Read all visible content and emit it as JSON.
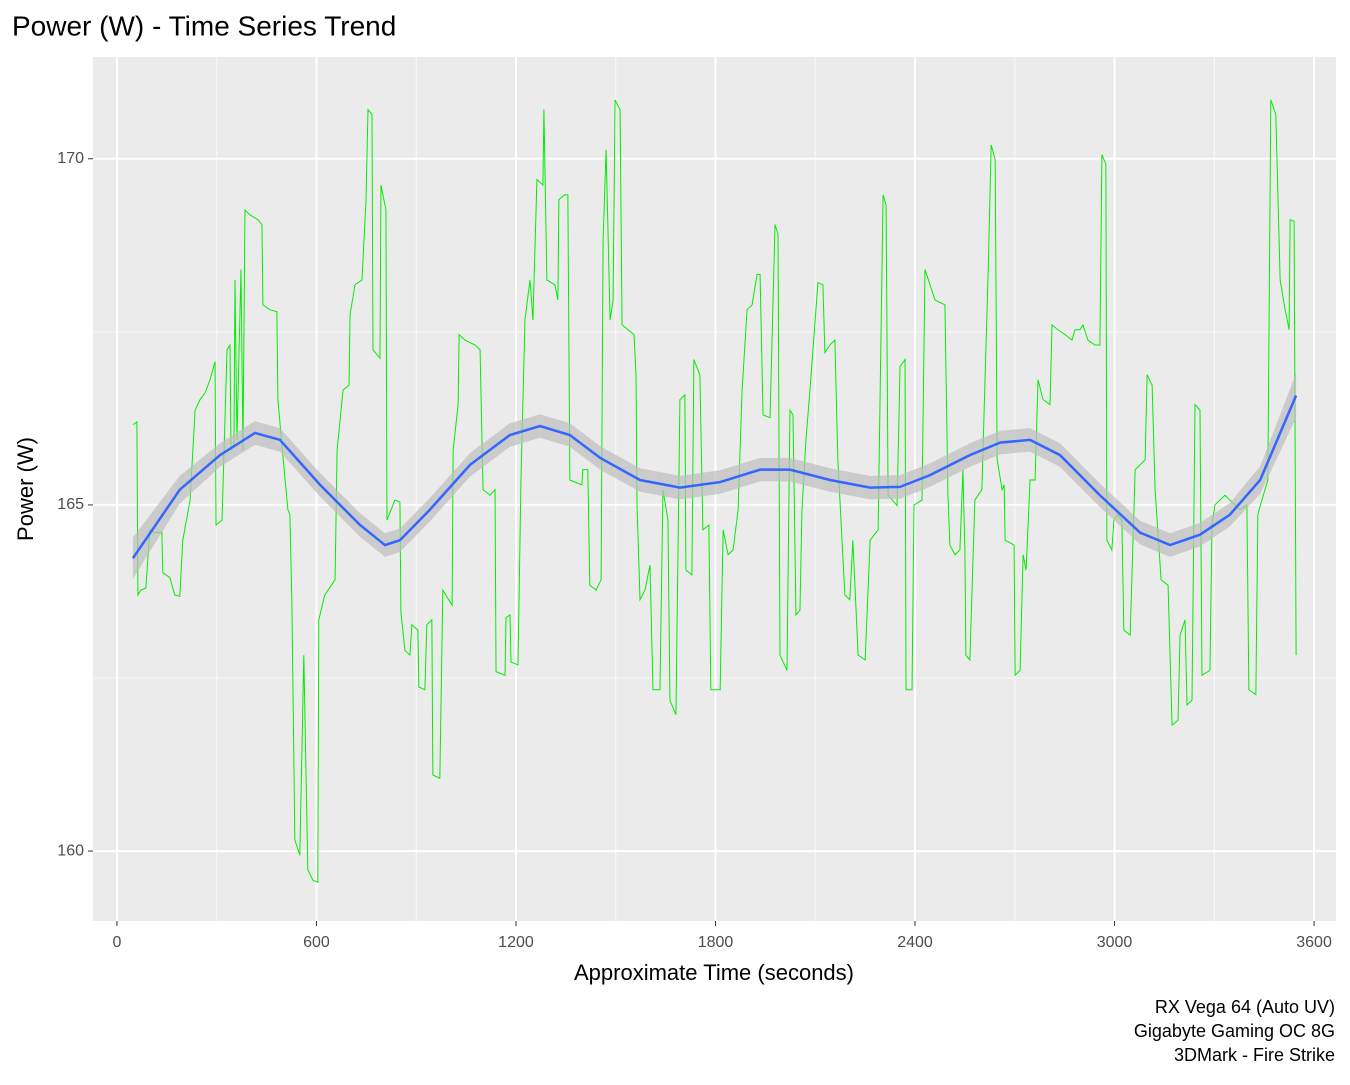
{
  "chart_data": {
    "type": "line",
    "title": "Power (W) - Time Series Trend",
    "x_label": "Approximate Time (seconds)",
    "y_label": "Power (W)",
    "caption": [
      "RX Vega 64 (Auto UV)",
      "Gigabyte Gaming OC 8G",
      "3DMark - Fire Strike"
    ],
    "xlim": [
      -72,
      3666
    ],
    "ylim": [
      158.99,
      171.47
    ],
    "xticks": [
      0,
      600,
      1200,
      1800,
      2400,
      3000,
      3600
    ],
    "yticks": [
      160,
      165,
      170
    ],
    "x_minor_grid": [
      300,
      900,
      1500,
      2100,
      2700,
      3300
    ],
    "y_minor_grid": [
      162.5,
      167.5
    ],
    "grid": true,
    "background": "#ebebeb",
    "series": [
      {
        "color": "#00ee00",
        "x": [
          48,
          60,
          63,
          72,
          87,
          99,
          114,
          129,
          135,
          138,
          159,
          174,
          189,
          198,
          220,
          235,
          250,
          265,
          280,
          295,
          298,
          316,
          331,
          340,
          343,
          352,
          355,
          361,
          373,
          379,
          385,
          400,
          424,
          436,
          439,
          460,
          481,
          484,
          496,
          514,
          520,
          526,
          535,
          550,
          562,
          574,
          589,
          604,
          607,
          625,
          656,
          662,
          680,
          698,
          701,
          716,
          737,
          749,
          755,
          767,
          770,
          791,
          794,
          809,
          812,
          836,
          851,
          854,
          866,
          881,
          887,
          905,
          908,
          926,
          932,
          947,
          950,
          971,
          980,
          1008,
          1011,
          1026,
          1029,
          1047,
          1077,
          1092,
          1101,
          1122,
          1137,
          1140,
          1167,
          1170,
          1182,
          1185,
          1206,
          1215,
          1227,
          1242,
          1251,
          1263,
          1281,
          1284,
          1293,
          1317,
          1326,
          1329,
          1347,
          1356,
          1362,
          1398,
          1401,
          1416,
          1422,
          1441,
          1456,
          1462,
          1471,
          1483,
          1492,
          1498,
          1513,
          1519,
          1555,
          1561,
          1564,
          1573,
          1588,
          1603,
          1612,
          1633,
          1642,
          1657,
          1663,
          1681,
          1693,
          1708,
          1711,
          1729,
          1735,
          1753,
          1762,
          1780,
          1786,
          1814,
          1823,
          1838,
          1853,
          1868,
          1880,
          1895,
          1910,
          1925,
          1934,
          1943,
          1964,
          1979,
          1988,
          1994,
          2015,
          2024,
          2033,
          2042,
          2054,
          2060,
          2072,
          2084,
          2108,
          2123,
          2129,
          2144,
          2159,
          2168,
          2189,
          2204,
          2213,
          2229,
          2250,
          2265,
          2289,
          2304,
          2313,
          2319,
          2346,
          2355,
          2370,
          2373,
          2391,
          2397,
          2421,
          2430,
          2445,
          2460,
          2490,
          2499,
          2505,
          2520,
          2535,
          2544,
          2550,
          2553,
          2565,
          2580,
          2601,
          2620,
          2629,
          2641,
          2647,
          2662,
          2668,
          2671,
          2698,
          2701,
          2716,
          2725,
          2734,
          2746,
          2761,
          2770,
          2785,
          2806,
          2812,
          2830,
          2851,
          2872,
          2881,
          2896,
          2905,
          2920,
          2941,
          2956,
          2962,
          2974,
          2977,
          2992,
          2998,
          3010,
          3022,
          3028,
          3047,
          3062,
          3077,
          3092,
          3098,
          3113,
          3122,
          3140,
          3161,
          3173,
          3191,
          3197,
          3212,
          3218,
          3233,
          3242,
          3257,
          3263,
          3287,
          3293,
          3302,
          3317,
          3332,
          3347,
          3377,
          3398,
          3404,
          3425,
          3431,
          3443,
          3461,
          3470,
          3485,
          3498,
          3513,
          3525,
          3528,
          3540,
          3546
        ],
        "values": [
          166.16,
          166.2,
          163.7,
          163.77,
          163.8,
          164.64,
          164.6,
          164.6,
          164.61,
          164.02,
          163.95,
          163.7,
          163.68,
          164.49,
          165.07,
          166.37,
          166.52,
          166.62,
          166.81,
          167.07,
          164.71,
          164.78,
          167.24,
          167.31,
          165.79,
          165.87,
          168.25,
          165.94,
          168.4,
          165.79,
          169.26,
          169.19,
          169.12,
          169.05,
          167.89,
          167.82,
          167.79,
          166.52,
          165.87,
          164.93,
          164.86,
          163.63,
          160.16,
          159.94,
          162.83,
          159.73,
          159.58,
          159.55,
          163.34,
          163.7,
          163.92,
          165.79,
          166.66,
          166.73,
          167.75,
          168.18,
          168.25,
          169.41,
          170.71,
          170.64,
          167.24,
          167.12,
          169.62,
          169.26,
          164.78,
          165.07,
          165.04,
          163.45,
          162.9,
          162.83,
          163.27,
          163.19,
          162.37,
          162.33,
          163.27,
          163.34,
          161.1,
          161.05,
          163.77,
          163.55,
          165.79,
          166.45,
          167.46,
          167.38,
          167.31,
          167.24,
          165.22,
          165.14,
          165.22,
          162.59,
          162.54,
          163.37,
          163.41,
          162.73,
          162.69,
          165.36,
          167.67,
          168.25,
          167.67,
          169.7,
          169.62,
          170.71,
          168.25,
          168.18,
          167.96,
          169.41,
          169.48,
          169.48,
          165.36,
          165.29,
          165.51,
          165.51,
          163.84,
          163.77,
          163.92,
          168.83,
          170.13,
          167.67,
          167.96,
          170.85,
          170.71,
          167.6,
          167.46,
          166.88,
          165.0,
          163.63,
          163.77,
          164.13,
          162.33,
          162.33,
          165.22,
          164.78,
          162.18,
          161.97,
          166.52,
          166.59,
          164.06,
          163.99,
          167.1,
          166.88,
          164.64,
          164.71,
          162.33,
          162.33,
          164.64,
          164.28,
          164.35,
          164.93,
          166.66,
          167.82,
          167.89,
          168.33,
          168.33,
          166.3,
          166.26,
          169.05,
          168.91,
          162.83,
          162.61,
          166.37,
          166.3,
          163.41,
          163.48,
          164.93,
          165.94,
          166.66,
          168.21,
          168.18,
          167.2,
          167.31,
          167.38,
          165.65,
          163.7,
          163.63,
          164.49,
          162.83,
          162.76,
          164.49,
          164.64,
          169.48,
          169.33,
          165.14,
          164.99,
          167.0,
          167.1,
          162.33,
          162.33,
          165.0,
          165.07,
          168.4,
          168.18,
          167.96,
          167.89,
          165.14,
          164.42,
          164.28,
          164.35,
          165.51,
          164.35,
          162.83,
          162.76,
          165.07,
          165.22,
          168.37,
          170.2,
          169.99,
          165.65,
          165.22,
          165.29,
          164.49,
          164.42,
          162.54,
          162.61,
          164.28,
          164.06,
          165.36,
          165.36,
          166.81,
          166.52,
          166.45,
          167.6,
          167.53,
          167.46,
          167.38,
          167.53,
          167.53,
          167.6,
          167.38,
          167.31,
          167.31,
          170.06,
          169.92,
          164.49,
          164.35,
          164.78,
          164.86,
          164.78,
          163.19,
          163.12,
          165.51,
          165.58,
          165.65,
          166.88,
          166.73,
          165.22,
          163.92,
          163.84,
          161.82,
          161.89,
          163.12,
          163.34,
          162.11,
          162.18,
          166.45,
          166.37,
          162.54,
          162.61,
          164.71,
          165.0,
          165.07,
          165.14,
          165.07,
          164.93,
          165.0,
          162.33,
          162.26,
          164.86,
          165.07,
          165.36,
          170.85,
          170.64,
          168.25,
          167.82,
          167.53,
          169.12,
          169.1,
          162.83
        ]
      },
      {
        "color": "#3366ff",
        "x": [
          48,
          189,
          310,
          415,
          490,
          611,
          731,
          806,
          851,
          941,
          1062,
          1182,
          1272,
          1362,
          1453,
          1573,
          1693,
          1814,
          1934,
          2024,
          2144,
          2265,
          2355,
          2445,
          2565,
          2656,
          2746,
          2836,
          2956,
          3077,
          3167,
          3257,
          3347,
          3438,
          3546
        ],
        "values": [
          164.23,
          165.22,
          165.72,
          166.04,
          165.94,
          165.29,
          164.71,
          164.42,
          164.49,
          164.93,
          165.58,
          166.01,
          166.14,
          166.01,
          165.68,
          165.36,
          165.25,
          165.33,
          165.51,
          165.51,
          165.36,
          165.25,
          165.26,
          165.43,
          165.72,
          165.9,
          165.94,
          165.72,
          165.14,
          164.6,
          164.42,
          164.57,
          164.86,
          165.36,
          166.58
        ]
      }
    ],
    "band": {
      "series": 1,
      "color": "#bdbdbd",
      "lower": [
        163.93,
        165.02,
        165.55,
        165.87,
        165.77,
        165.12,
        164.54,
        164.25,
        164.32,
        164.76,
        165.41,
        165.84,
        165.97,
        165.84,
        165.51,
        165.19,
        165.08,
        165.16,
        165.34,
        165.34,
        165.19,
        165.08,
        165.09,
        165.26,
        165.55,
        165.73,
        165.77,
        165.55,
        164.97,
        164.43,
        164.25,
        164.4,
        164.69,
        165.16,
        166.26
      ],
      "upper": [
        164.53,
        165.42,
        165.89,
        166.21,
        166.11,
        165.46,
        164.88,
        164.59,
        164.66,
        165.1,
        165.75,
        166.18,
        166.31,
        166.18,
        165.85,
        165.53,
        165.42,
        165.5,
        165.68,
        165.68,
        165.53,
        165.42,
        165.43,
        165.6,
        165.89,
        166.07,
        166.11,
        165.89,
        165.31,
        164.77,
        164.59,
        164.74,
        165.03,
        165.56,
        166.9
      ]
    }
  }
}
